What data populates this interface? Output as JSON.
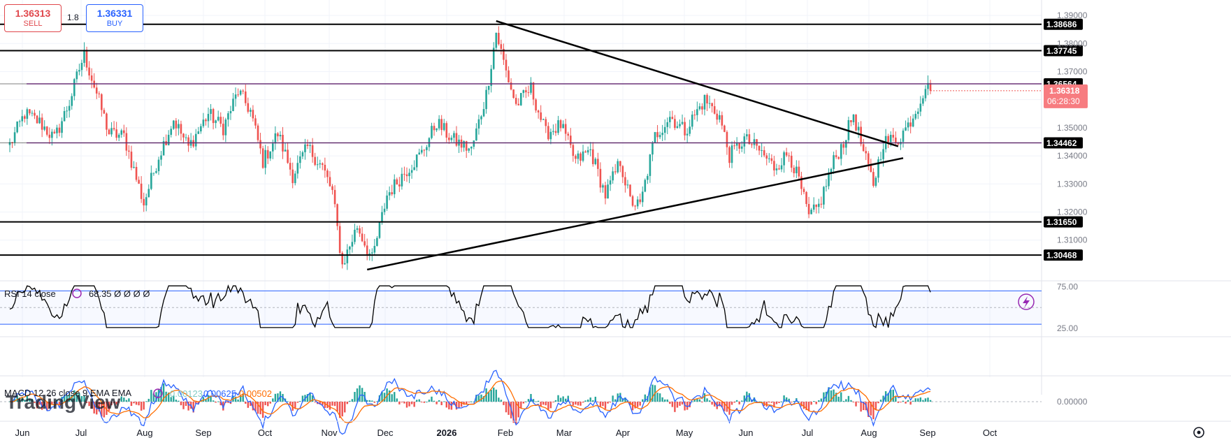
{
  "trade": {
    "sell_price": "1.36313",
    "sell_label": "SELL",
    "spread": "1.8",
    "buy_price": "1.36331",
    "buy_label": "BUY"
  },
  "watermark": "TradingView",
  "colors": {
    "up": "#26a69a",
    "down": "#ef5350",
    "level": "#000000",
    "purple_level": "#9c27b0",
    "rsi_band": "#2962ff",
    "macd": "#2962ff",
    "signal": "#ff6d00"
  },
  "chart_data": [
    {
      "type": "candlestick",
      "title": "",
      "ylim": [
        1.2955,
        1.3935
      ],
      "y_ticks": [
        "1.39000",
        "1.38000",
        "1.37000",
        "1.36000",
        "1.35000",
        "1.34000",
        "1.33000",
        "1.32000",
        "1.31000"
      ],
      "x_ticks": [
        "Jun",
        "Jul",
        "Aug",
        "Sep",
        "Oct",
        "Nov",
        "Dec",
        "2026",
        "Feb",
        "Mar",
        "Apr",
        "May",
        "Jun",
        "Jul",
        "Aug",
        "Sep",
        "Oct"
      ],
      "anchors": [
        {
          "d": 0,
          "v": 1.344
        },
        {
          "d": 6,
          "v": 1.355
        },
        {
          "d": 12,
          "v": 1.352
        },
        {
          "d": 18,
          "v": 1.346
        },
        {
          "d": 24,
          "v": 1.359
        },
        {
          "d": 28,
          "v": 1.371
        },
        {
          "d": 30,
          "v": 1.376
        },
        {
          "d": 34,
          "v": 1.365
        },
        {
          "d": 40,
          "v": 1.348
        },
        {
          "d": 46,
          "v": 1.347
        },
        {
          "d": 54,
          "v": 1.323
        },
        {
          "d": 60,
          "v": 1.34
        },
        {
          "d": 66,
          "v": 1.353
        },
        {
          "d": 72,
          "v": 1.343
        },
        {
          "d": 80,
          "v": 1.355
        },
        {
          "d": 86,
          "v": 1.35
        },
        {
          "d": 92,
          "v": 1.363
        },
        {
          "d": 97,
          "v": 1.356
        },
        {
          "d": 102,
          "v": 1.338
        },
        {
          "d": 108,
          "v": 1.348
        },
        {
          "d": 114,
          "v": 1.333
        },
        {
          "d": 120,
          "v": 1.343
        },
        {
          "d": 126,
          "v": 1.336
        },
        {
          "d": 130,
          "v": 1.327
        },
        {
          "d": 134,
          "v": 1.301
        },
        {
          "d": 140,
          "v": 1.315
        },
        {
          "d": 146,
          "v": 1.303
        },
        {
          "d": 152,
          "v": 1.326
        },
        {
          "d": 158,
          "v": 1.333
        },
        {
          "d": 166,
          "v": 1.341
        },
        {
          "d": 172,
          "v": 1.352
        },
        {
          "d": 178,
          "v": 1.346
        },
        {
          "d": 186,
          "v": 1.342
        },
        {
          "d": 192,
          "v": 1.362
        },
        {
          "d": 196,
          "v": 1.384
        },
        {
          "d": 200,
          "v": 1.37
        },
        {
          "d": 204,
          "v": 1.358
        },
        {
          "d": 210,
          "v": 1.364
        },
        {
          "d": 216,
          "v": 1.348
        },
        {
          "d": 222,
          "v": 1.351
        },
        {
          "d": 228,
          "v": 1.338
        },
        {
          "d": 234,
          "v": 1.342
        },
        {
          "d": 240,
          "v": 1.326
        },
        {
          "d": 246,
          "v": 1.338
        },
        {
          "d": 250,
          "v": 1.324
        },
        {
          "d": 254,
          "v": 1.322
        },
        {
          "d": 260,
          "v": 1.347
        },
        {
          "d": 266,
          "v": 1.354
        },
        {
          "d": 272,
          "v": 1.349
        },
        {
          "d": 280,
          "v": 1.36
        },
        {
          "d": 286,
          "v": 1.354
        },
        {
          "d": 290,
          "v": 1.34
        },
        {
          "d": 296,
          "v": 1.346
        },
        {
          "d": 302,
          "v": 1.342
        },
        {
          "d": 308,
          "v": 1.336
        },
        {
          "d": 314,
          "v": 1.341
        },
        {
          "d": 318,
          "v": 1.331
        },
        {
          "d": 322,
          "v": 1.318
        },
        {
          "d": 326,
          "v": 1.322
        },
        {
          "d": 332,
          "v": 1.338
        },
        {
          "d": 336,
          "v": 1.345
        },
        {
          "d": 340,
          "v": 1.355
        },
        {
          "d": 344,
          "v": 1.341
        },
        {
          "d": 348,
          "v": 1.33
        },
        {
          "d": 352,
          "v": 1.345
        },
        {
          "d": 358,
          "v": 1.346
        },
        {
          "d": 362,
          "v": 1.351
        },
        {
          "d": 366,
          "v": 1.358
        },
        {
          "d": 369,
          "v": 1.365
        },
        {
          "d": 371,
          "v": 1.3631
        }
      ],
      "levels": [
        {
          "value": 1.38686,
          "label": "1.38686",
          "color": "#000000"
        },
        {
          "value": 1.37745,
          "label": "1.37745",
          "color": "#000000"
        },
        {
          "value": 1.36564,
          "label": "1.36564",
          "color": "#9c27b0"
        },
        {
          "value": 1.34462,
          "label": "1.34462",
          "color": "#9c27b0"
        },
        {
          "value": 1.3165,
          "label": "1.31650",
          "color": "#000000"
        },
        {
          "value": 1.30468,
          "label": "1.30468",
          "color": "#000000"
        }
      ],
      "trendlines": [
        {
          "from": {
            "d": 196,
            "v": 1.388
          },
          "to": {
            "d": 358,
            "v": 1.3434
          }
        },
        {
          "from": {
            "d": 144,
            "v": 1.2995
          },
          "to": {
            "d": 360,
            "v": 1.3392
          }
        }
      ],
      "last_price": {
        "value": "1.36318",
        "countdown": "06:28:30"
      }
    },
    {
      "type": "line",
      "name": "RSI",
      "legend": "RSI 14 close",
      "value_label": "68.35",
      "ylim": [
        15,
        82
      ],
      "y_ticks": [
        "75.00",
        "25.00"
      ],
      "bands": [
        70,
        30
      ],
      "midline": 50
    },
    {
      "type": "bar+line",
      "name": "MACD",
      "legend": "MACD 12 26 close 9 EMA EMA",
      "values": [
        "0.00123",
        "0.00625",
        "0.00502"
      ],
      "y_ticks": [
        "0.00000"
      ]
    }
  ],
  "icons": [
    "settings-icon",
    "alert-lightning-icon",
    "indicator-settings-icon"
  ]
}
